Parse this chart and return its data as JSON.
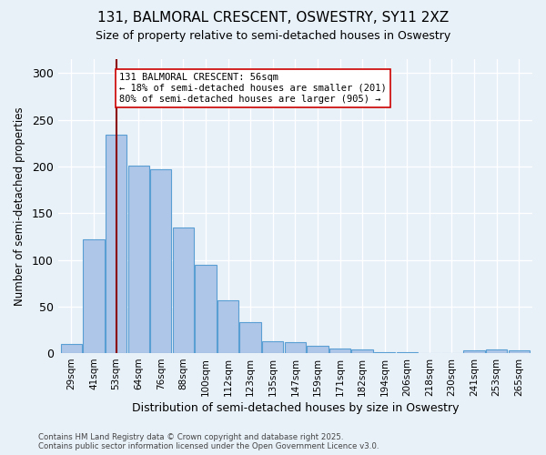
{
  "title_line1": "131, BALMORAL CRESCENT, OSWESTRY, SY11 2XZ",
  "title_line2": "Size of property relative to semi-detached houses in Oswestry",
  "xlabel": "Distribution of semi-detached houses by size in Oswestry",
  "ylabel": "Number of semi-detached properties",
  "footnote": "Contains HM Land Registry data © Crown copyright and database right 2025.\nContains public sector information licensed under the Open Government Licence v3.0.",
  "bins": [
    "29sqm",
    "41sqm",
    "53sqm",
    "64sqm",
    "76sqm",
    "88sqm",
    "100sqm",
    "112sqm",
    "123sqm",
    "135sqm",
    "147sqm",
    "159sqm",
    "171sqm",
    "182sqm",
    "194sqm",
    "206sqm",
    "218sqm",
    "230sqm",
    "241sqm",
    "253sqm",
    "265sqm"
  ],
  "values": [
    10,
    122,
    234,
    201,
    197,
    135,
    95,
    57,
    33,
    13,
    12,
    8,
    5,
    4,
    1,
    1,
    0,
    0,
    3,
    4,
    3
  ],
  "bar_color": "#aec6e8",
  "bar_edge_color": "#5a9fd4",
  "background_color": "#e8f0f8",
  "grid_color": "#ffffff",
  "property_bin_index": 2,
  "vline_color": "#8b0000",
  "annotation_text": "131 BALMORAL CRESCENT: 56sqm\n← 18% of semi-detached houses are smaller (201)\n80% of semi-detached houses are larger (905) →",
  "annotation_box_color": "#ffffff",
  "annotation_box_edge": "#cc0000",
  "ylim": [
    0,
    315
  ],
  "yticks": [
    0,
    50,
    100,
    150,
    200,
    250,
    300
  ]
}
